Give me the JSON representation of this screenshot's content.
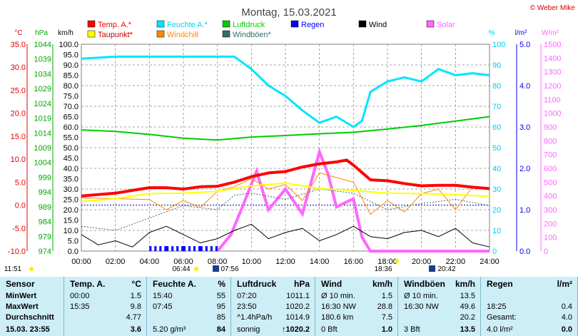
{
  "title": "Montag, 15.03.2021",
  "copyright": "© Weber Mike",
  "colors": {
    "temp": "#ff0000",
    "humidity": "#00e5ff",
    "pressure": "#00cc00",
    "wind": "#000000",
    "solar": "#ff66ff",
    "dewpoint": "#ffff00",
    "windchill": "#ff8800",
    "rain": "#0000ff",
    "gust": "#2e6f6a",
    "grid": "#7f7f7f"
  },
  "legend": [
    {
      "label": "Temp. A.*",
      "color": "#ff0000"
    },
    {
      "label": "Feuchte A.*",
      "color": "#00e5ff"
    },
    {
      "label": "Luftdruck",
      "color": "#00cc00"
    },
    {
      "label": "Regen",
      "color": "#0000ff"
    },
    {
      "label": "Wind",
      "color": "#000000"
    },
    {
      "label": "Solar",
      "color": "#ff66ff"
    },
    {
      "label": "Taupunkt*",
      "color": "#ffff00"
    },
    {
      "label": "Windchill",
      "color": "#ff8800"
    },
    {
      "label": "Windböen*",
      "color": "#2e6f6a"
    }
  ],
  "axis_units": {
    "temp": "°C",
    "pressure": "hPa",
    "wind": "km/h",
    "humidity": "%",
    "rain": "l/m²",
    "solar": "W/m²"
  },
  "axes": {
    "temp": [
      "35.0",
      "30.0",
      "25.0",
      "20.0",
      "15.0",
      "10.0",
      "5.0",
      "0.0",
      "-5.0",
      "-10.0"
    ],
    "pressure": [
      "1044",
      "1039",
      "1034",
      "1029",
      "1024",
      "1019",
      "1014",
      "1009",
      "1004",
      "999",
      "994",
      "989",
      "984",
      "979",
      "974"
    ],
    "wind": [
      "100.0",
      "95.0",
      "90.0",
      "85.0",
      "80.0",
      "75.0",
      "70.0",
      "65.0",
      "60.0",
      "55.0",
      "50.0",
      "45.0",
      "40.0",
      "35.0",
      "30.0",
      "25.0",
      "20.0",
      "15.0",
      "10.0",
      "5.0",
      "0.0"
    ],
    "humidity": [
      "100",
      "90",
      "80",
      "70",
      "60",
      "50",
      "40",
      "30",
      "20",
      "10",
      "0"
    ],
    "rain": [
      "5.0",
      "4.0",
      "3.0",
      "2.0",
      "1.0",
      "0.0"
    ],
    "solar": [
      "1500",
      "1400",
      "1300",
      "1200",
      "1100",
      "1000",
      "900",
      "800",
      "700",
      "600",
      "500",
      "400",
      "300",
      "200",
      "100",
      "0"
    ],
    "time": [
      "00:00",
      "02:00",
      "04:00",
      "06:00",
      "08:00",
      "10:00",
      "12:00",
      "14:00",
      "16:00",
      "18:00",
      "20:00",
      "22:00",
      "24:00"
    ]
  },
  "sun": {
    "sunrise": "06:44",
    "sunrise_civil": "07:56",
    "sunset": "18:36",
    "sunset_civil": "20:42",
    "moon_time": "11:51"
  },
  "chart_data": {
    "type": "line",
    "x_unit": "hour",
    "series": [
      {
        "name": "Temp. A.*",
        "unit": "°C",
        "x": [
          0,
          2,
          3,
          4,
          5,
          6,
          7,
          8,
          9,
          10,
          11,
          12,
          13,
          14,
          15,
          15.6,
          16,
          17,
          18,
          19,
          20,
          21,
          22,
          23,
          24
        ],
        "values": [
          2.0,
          2.6,
          3.2,
          3.8,
          3.8,
          3.5,
          4.0,
          4.1,
          5.0,
          6.2,
          7.0,
          7.3,
          8.3,
          9.0,
          9.4,
          9.8,
          8.7,
          5.5,
          5.3,
          4.7,
          4.2,
          4.3,
          4.3,
          3.9,
          3.6
        ]
      },
      {
        "name": "Feuchte A.*",
        "unit": "%",
        "x": [
          0,
          2,
          4,
          6,
          8,
          9,
          10,
          11,
          12,
          13,
          14,
          15,
          16,
          16.5,
          17,
          18,
          19,
          20,
          21,
          22,
          23,
          24
        ],
        "values": [
          93,
          94,
          94,
          94,
          94,
          94,
          88,
          80,
          75,
          68,
          62,
          65,
          60,
          63,
          77,
          82,
          84,
          82,
          88,
          85,
          86,
          85
        ]
      },
      {
        "name": "Luftdruck",
        "unit": "hPa",
        "x": [
          0,
          2,
          4,
          6,
          8,
          10,
          12,
          14,
          16,
          18,
          20,
          22,
          24
        ],
        "values": [
          1015.0,
          1014.5,
          1013.5,
          1012.2,
          1011.6,
          1012.6,
          1013.1,
          1013.7,
          1014.2,
          1015.3,
          1016.5,
          1018.0,
          1019.5
        ]
      },
      {
        "name": "Taupunkt*",
        "unit": "°C",
        "x": [
          0,
          2,
          4,
          6,
          8,
          10,
          12,
          14,
          16,
          18,
          20,
          22,
          24
        ],
        "values": [
          0.8,
          1.4,
          2.5,
          2.6,
          3.0,
          4.2,
          4.8,
          3.6,
          3.2,
          2.6,
          2.5,
          2.3,
          1.9
        ]
      },
      {
        "name": "Windchill",
        "unit": "°C",
        "x": [
          0,
          4,
          5,
          6,
          7,
          8,
          9,
          10,
          11,
          12,
          13,
          14,
          15,
          16,
          17,
          18,
          19,
          20,
          21,
          22,
          23,
          24
        ],
        "values": [
          1.6,
          1.2,
          -1.0,
          1.0,
          -0.5,
          3.0,
          4.0,
          5.8,
          3.5,
          4.5,
          1.0,
          7.0,
          6.0,
          5.0,
          -2.0,
          1.0,
          -1.5,
          2.5,
          3.5,
          -1.0,
          4.0,
          3.3
        ]
      },
      {
        "name": "Wind",
        "unit": "km/h",
        "x": [
          0,
          1,
          2,
          3,
          4,
          5,
          6,
          7,
          8,
          9,
          10,
          11,
          12,
          13,
          14,
          15,
          16,
          17,
          18,
          19,
          20,
          21,
          22,
          23,
          24
        ],
        "values": [
          8,
          3,
          5,
          2,
          9,
          12,
          8,
          4,
          6,
          10,
          13,
          6,
          9,
          11,
          5,
          8,
          12,
          7,
          6,
          9,
          10,
          7,
          11,
          4,
          2
        ]
      },
      {
        "name": "Windböen*",
        "unit": "km/h",
        "x": [
          0,
          2,
          4,
          6,
          8,
          9,
          10,
          12,
          14,
          16,
          18,
          20,
          22,
          24
        ],
        "values": [
          12,
          10,
          16,
          22,
          20,
          27,
          28,
          25,
          30,
          28,
          20,
          23,
          25,
          22
        ]
      },
      {
        "name": "Solar",
        "unit": "W/m²",
        "x": [
          8,
          8.8,
          9.5,
          10.3,
          11,
          12,
          13,
          14,
          14.5,
          15,
          16,
          16.5,
          17,
          18,
          24
        ],
        "values": [
          0,
          120,
          330,
          580,
          300,
          450,
          270,
          720,
          560,
          320,
          380,
          100,
          0,
          0,
          0
        ]
      },
      {
        "name": "Regen",
        "unit": "l/m²",
        "x": [
          4,
          5,
          6,
          7
        ],
        "values": [
          0.1,
          0.1,
          0.1,
          0.1
        ]
      }
    ],
    "xlim": [
      0,
      24
    ],
    "ylim_temp": [
      -10,
      35
    ]
  },
  "table": {
    "columns": [
      {
        "key": "sensor",
        "title": "Sensor",
        "unit": ""
      },
      {
        "key": "temp",
        "title": "Temp. A.",
        "unit": "°C"
      },
      {
        "key": "humidity",
        "title": "Feuchte A.",
        "unit": "%"
      },
      {
        "key": "pressure",
        "title": "Luftdruck",
        "unit": "hPa"
      },
      {
        "key": "wind",
        "title": "Wind",
        "unit": "km/h"
      },
      {
        "key": "gust",
        "title": "Windböen",
        "unit": "km/h"
      },
      {
        "key": "rain",
        "title": "Regen",
        "unit": "l/m²"
      }
    ],
    "rows": [
      {
        "label": "MinWert",
        "temp": [
          "00:00",
          "1.5"
        ],
        "humidity": [
          "15:40",
          "55"
        ],
        "pressure": [
          "07:20",
          "1011.1"
        ],
        "wind": [
          "Ø 10 min.",
          "1.5"
        ],
        "gust": [
          "Ø 10 min.",
          "13.5"
        ],
        "rain": [
          "",
          ""
        ]
      },
      {
        "label": "MaxWert",
        "temp": [
          "15:35",
          "9.8"
        ],
        "humidity": [
          "07:45",
          "95"
        ],
        "pressure": [
          "23:50",
          "1020.2"
        ],
        "wind": [
          "16:30  NW",
          "28.8"
        ],
        "gust": [
          "16:30  NW",
          "49.6"
        ],
        "rain": [
          "18:25",
          "0.4"
        ]
      },
      {
        "label": "Durchschnitt",
        "temp": [
          "",
          "4.77"
        ],
        "humidity": [
          "",
          "85"
        ],
        "pressure": [
          "^1.4hPa/h",
          "1014.9"
        ],
        "wind": [
          "180.6 km",
          "7.5"
        ],
        "gust": [
          "",
          "20.2"
        ],
        "rain": [
          "Gesamt:",
          "4.0"
        ]
      },
      {
        "label": "15.03.  23:55",
        "temp": [
          "",
          "3.6"
        ],
        "humidity": [
          "5.20 g/m³",
          "84"
        ],
        "pressure": [
          "sonnig",
          "↑1020.2"
        ],
        "wind": [
          "0 Bft",
          "1.0"
        ],
        "gust": [
          "3 Bft",
          "13.5"
        ],
        "rain": [
          "4.0 l/m²",
          "0.0"
        ]
      }
    ]
  }
}
